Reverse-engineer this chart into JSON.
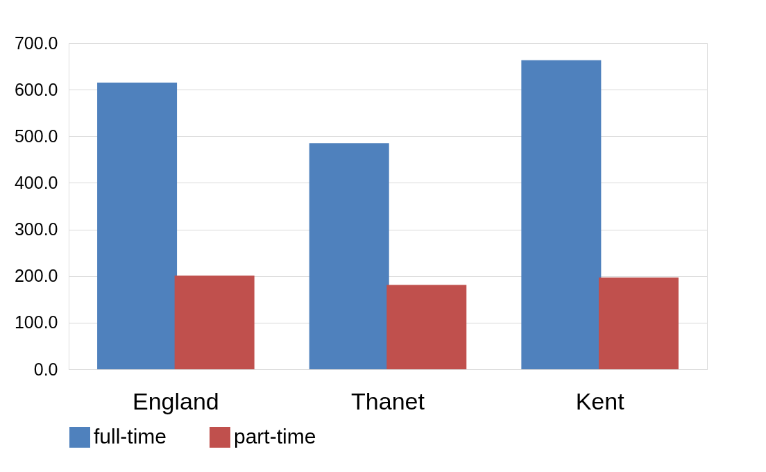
{
  "chart_data": {
    "type": "bar",
    "categories": [
      "England",
      "Thanet",
      "Kent"
    ],
    "series": [
      {
        "name": "full-time",
        "color": "#4f81bd",
        "values": [
          615,
          485,
          663
        ]
      },
      {
        "name": "part-time",
        "color": "#c0504d",
        "values": [
          201,
          181,
          197
        ]
      }
    ],
    "ylim": [
      0,
      700
    ],
    "yticks": [
      {
        "value": 0,
        "label": "0.0"
      },
      {
        "value": 100,
        "label": "100.0"
      },
      {
        "value": 200,
        "label": "200.0"
      },
      {
        "value": 300,
        "label": "300.0"
      },
      {
        "value": 400,
        "label": "400.0"
      },
      {
        "value": 500,
        "label": "500.0"
      },
      {
        "value": 600,
        "label": "600.0"
      },
      {
        "value": 700,
        "label": "700.0"
      }
    ],
    "grid": "y",
    "legend": "bottom"
  }
}
